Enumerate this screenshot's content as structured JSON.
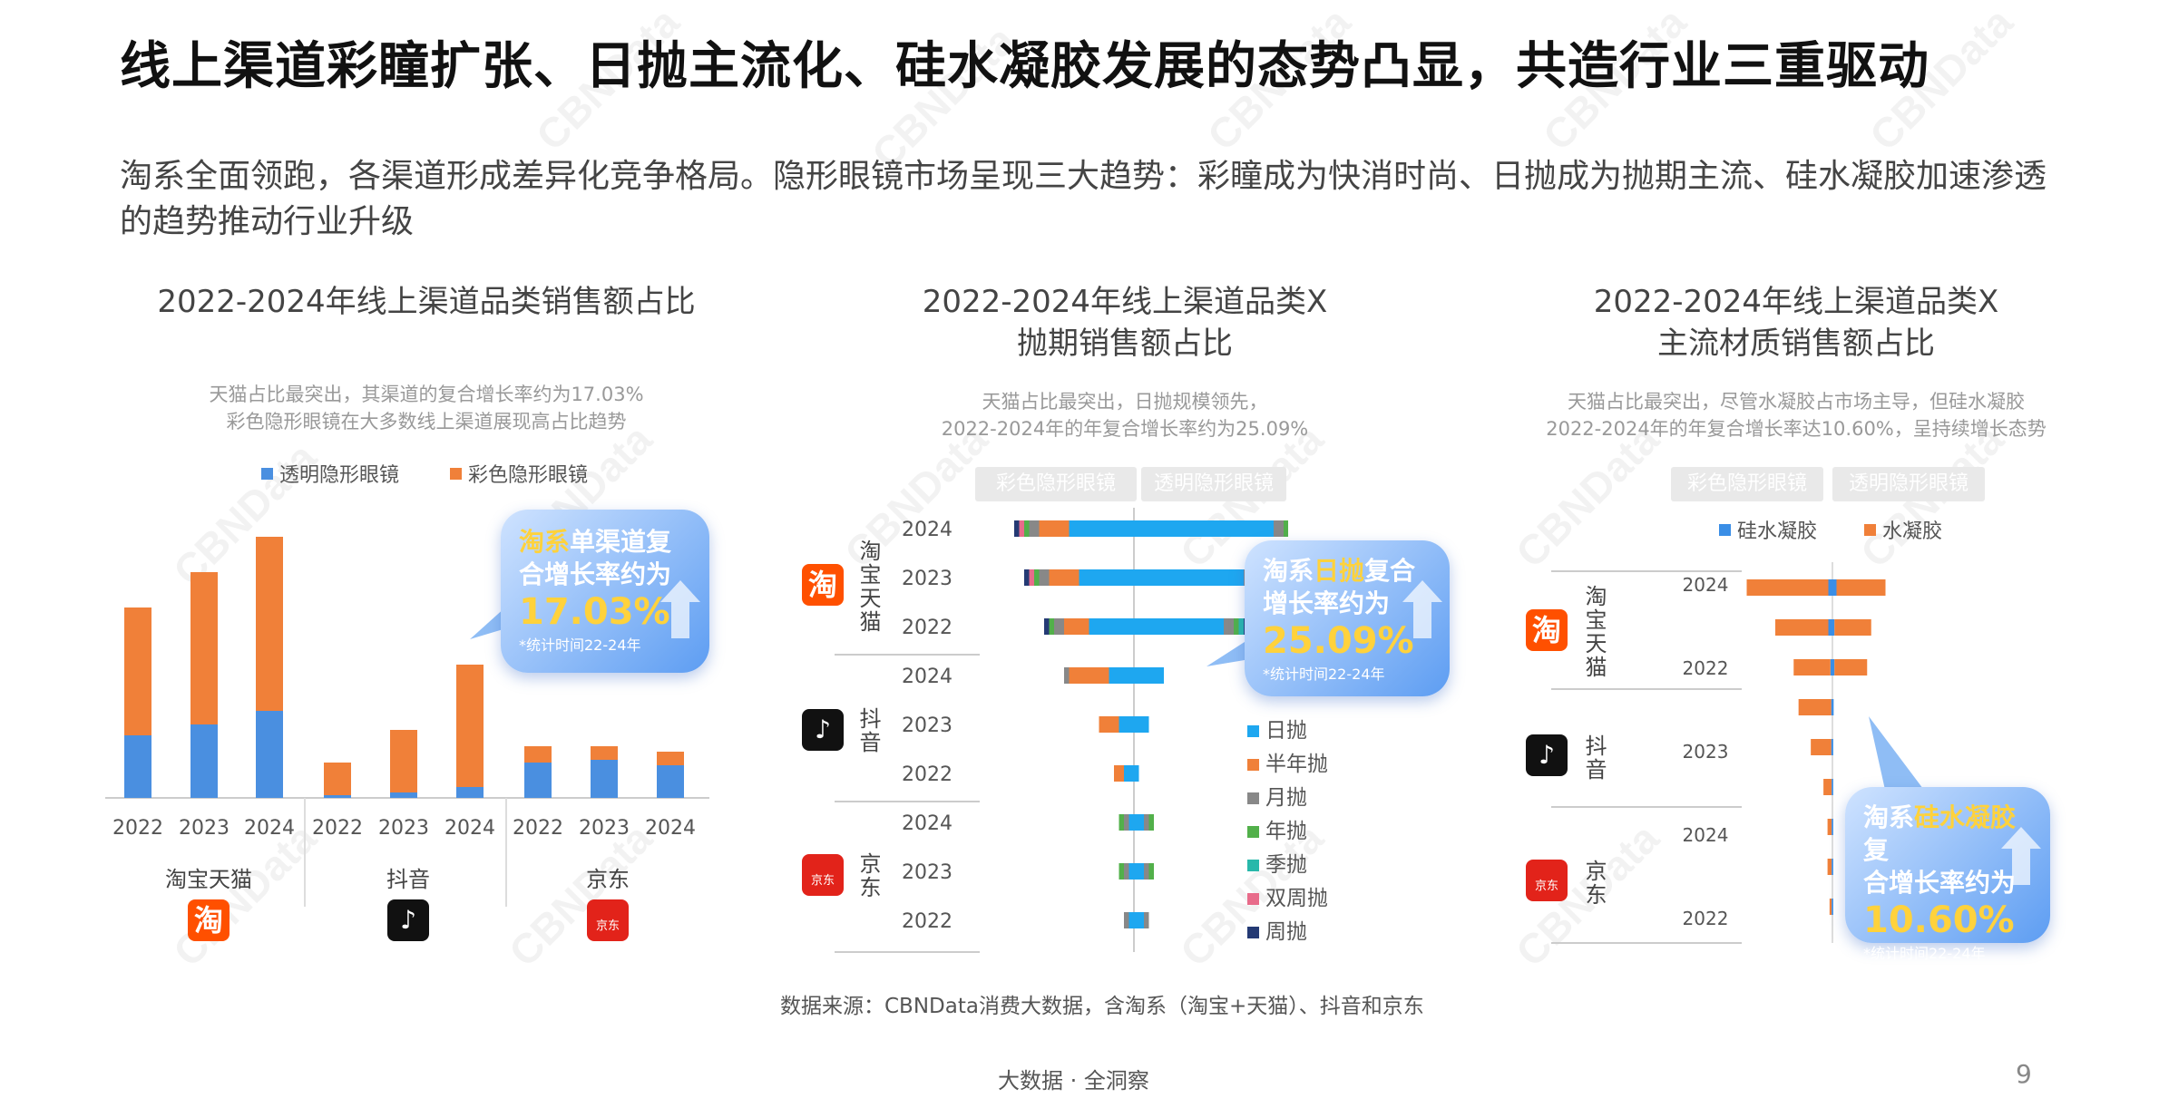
{
  "title": "线上渠道彩瞳扩张、日抛主流化、硅水凝胶发展的态势凸显，共造行业三重驱动",
  "subtitle": "淘系全面领跑，各渠道形成差异化竞争格局。隐形眼镜市场呈现三大趋势：彩瞳成为快消时尚、日抛成为抛期主流、硅水凝胶加速渗透的趋势推动行业升级",
  "watermark": "CBNData",
  "source": "数据来源：CBNData消费大数据，含淘系（淘宝+天猫）、抖音和京东",
  "footer": "大数据 · 全洞察",
  "page_number": "9",
  "chart1": {
    "title": "2022-2024年线上渠道品类销售额占比",
    "note1": "天猫占比最突出，其渠道的复合增长率约为17.03%",
    "note2": "彩色隐形眼镜在大多数线上渠道展现高占比趋势",
    "bubble": {
      "brand": "淘系",
      "text1": "单渠道复",
      "text2": "合增长率约为",
      "value": "17.03%",
      "note": "*统计时间22-24年"
    },
    "channel_labels": [
      "淘宝天猫",
      "抖音",
      "京东"
    ],
    "logo_tb": "淘",
    "logo_dy": "♪",
    "logo_jd": "京东"
  },
  "chart2": {
    "title1": "2022-2024年线上渠道品类X",
    "title2": "抛期销售额占比",
    "note1": "天猫占比最突出，日抛规模领先，",
    "note2": "2022-2024年的年复合增长率约为25.09%",
    "pill_left": "彩色隐形眼镜",
    "pill_right": "透明隐形眼镜",
    "groups": [
      "淘宝天猫",
      "抖音",
      "京东"
    ],
    "years": [
      "2024",
      "2023",
      "2022",
      "2024",
      "2023",
      "2022",
      "2024",
      "2023",
      "2022"
    ],
    "bubble": {
      "brand": "淘系",
      "highlight": "日抛",
      "text1": "复合",
      "text2": "增长率约为",
      "value": "25.09%",
      "note": "*统计时间22-24年"
    },
    "logo_tb": "淘",
    "logo_dy": "♪",
    "logo_jd": "京东"
  },
  "chart3": {
    "title1": "2022-2024年线上渠道品类X",
    "title2": "主流材质销售额占比",
    "note1": "天猫占比最突出，尽管水凝胶占市场主导，但硅水凝胶",
    "note2": "2022-2024年的年复合增长率达10.60%，呈持续增长态势",
    "pill_left": "彩色隐形眼镜",
    "pill_right": "透明隐形眼镜",
    "groups": [
      "淘宝天猫",
      "抖音",
      "京东"
    ],
    "year_labels": [
      "2024",
      "2022",
      "2023",
      "2024",
      "2022"
    ],
    "bubble": {
      "brand": "淘系",
      "highlight": "硅水凝胶",
      "text1": "复",
      "text2": "合增长率约为",
      "value": "10.60%",
      "note": "*统计时间22-24年"
    },
    "logo_tb": "淘",
    "logo_dy": "♪",
    "logo_jd": "京东"
  },
  "chart_data": [
    {
      "type": "bar",
      "stacked": true,
      "title": "2022-2024年线上渠道品类销售额占比",
      "categories": [
        "2022",
        "2023",
        "2024",
        "2022",
        "2023",
        "2024",
        "2022",
        "2023",
        "2024"
      ],
      "groups": [
        "淘宝天猫",
        "抖音",
        "京东"
      ],
      "series": [
        {
          "name": "透明隐形眼镜",
          "color": "#4a8fe0",
          "values": [
            23,
            27,
            32,
            1,
            2,
            4,
            13,
            14,
            12
          ]
        },
        {
          "name": "彩色隐形眼镜",
          "color": "#f08039",
          "values": [
            47,
            56,
            64,
            12,
            23,
            45,
            6,
            5,
            5
          ]
        }
      ],
      "legend": "top"
    },
    {
      "type": "bar",
      "orientation": "horizontal",
      "diverging": true,
      "title": "2022-2024年线上渠道品类X抛期销售额占比",
      "categories": [
        "淘宝天猫 2024",
        "淘宝天猫 2023",
        "淘宝天猫 2022",
        "抖音 2024",
        "抖音 2023",
        "抖音 2022",
        "京东 2024",
        "京东 2023",
        "京东 2022"
      ],
      "series": [
        {
          "name": "日抛",
          "color": "#1ea7f0",
          "left": [
            13,
            11,
            9,
            5,
            3,
            2,
            1,
            1,
            1
          ],
          "right": [
            28,
            22,
            18,
            6,
            3,
            1,
            2,
            2,
            2
          ]
        },
        {
          "name": "半年抛",
          "color": "#f08039",
          "left": [
            6,
            6,
            5,
            8,
            4,
            2,
            0,
            0,
            0
          ],
          "right": [
            0,
            0,
            0,
            0,
            0,
            0,
            0,
            0,
            0
          ]
        },
        {
          "name": "月抛",
          "color": "#888888",
          "left": [
            2,
            2,
            2,
            1,
            0,
            0,
            1,
            1,
            1
          ],
          "right": [
            2,
            2,
            2,
            0,
            0,
            0,
            1,
            1,
            1
          ]
        },
        {
          "name": "年抛",
          "color": "#52b04a",
          "left": [
            1,
            1,
            1,
            0,
            0,
            0,
            1,
            1,
            0
          ],
          "right": [
            1,
            1,
            1,
            0,
            0,
            0,
            1,
            1,
            0
          ]
        },
        {
          "name": "季抛",
          "color": "#28b8aa",
          "left": [
            0,
            0,
            0,
            0,
            0,
            0,
            0,
            0,
            0
          ],
          "right": [
            1,
            1,
            1,
            0,
            0,
            0,
            0,
            0,
            0
          ]
        },
        {
          "name": "双周抛",
          "color": "#e86b8a",
          "left": [
            1,
            1,
            0,
            0,
            0,
            0,
            0,
            0,
            0
          ],
          "right": [
            1,
            1,
            0,
            0,
            0,
            0,
            0,
            0,
            0
          ]
        },
        {
          "name": "周抛",
          "color": "#243a74",
          "left": [
            1,
            1,
            1,
            0,
            0,
            0,
            0,
            0,
            0
          ],
          "right": [
            1,
            1,
            1,
            0,
            0,
            0,
            0,
            0,
            0
          ]
        }
      ]
    },
    {
      "type": "bar",
      "orientation": "horizontal",
      "diverging": true,
      "title": "2022-2024年线上渠道品类X主流材质销售额占比",
      "categories": [
        "淘宝天猫 2024",
        "淘宝天猫 2023",
        "淘宝天猫 2022",
        "抖音 2024",
        "抖音 2023",
        "抖音 2022",
        "京东 2024",
        "京东 2023",
        "京东 2022"
      ],
      "series": [
        {
          "name": "硅水凝胶",
          "color": "#3a8ee6",
          "left": [
            1,
            1,
            0.5,
            0.3,
            0.3,
            0.2,
            0.2,
            0.2,
            0.2
          ],
          "right": [
            1,
            0.5,
            0.5,
            0.3,
            0.2,
            0.2,
            0.2,
            0.2,
            0.2
          ]
        },
        {
          "name": "水凝胶",
          "color": "#f08039",
          "left": [
            20,
            13,
            9,
            8,
            5,
            2,
            1,
            1,
            0.5
          ],
          "right": [
            12,
            9,
            8,
            0,
            0,
            0,
            0,
            0,
            0
          ]
        }
      ]
    }
  ]
}
